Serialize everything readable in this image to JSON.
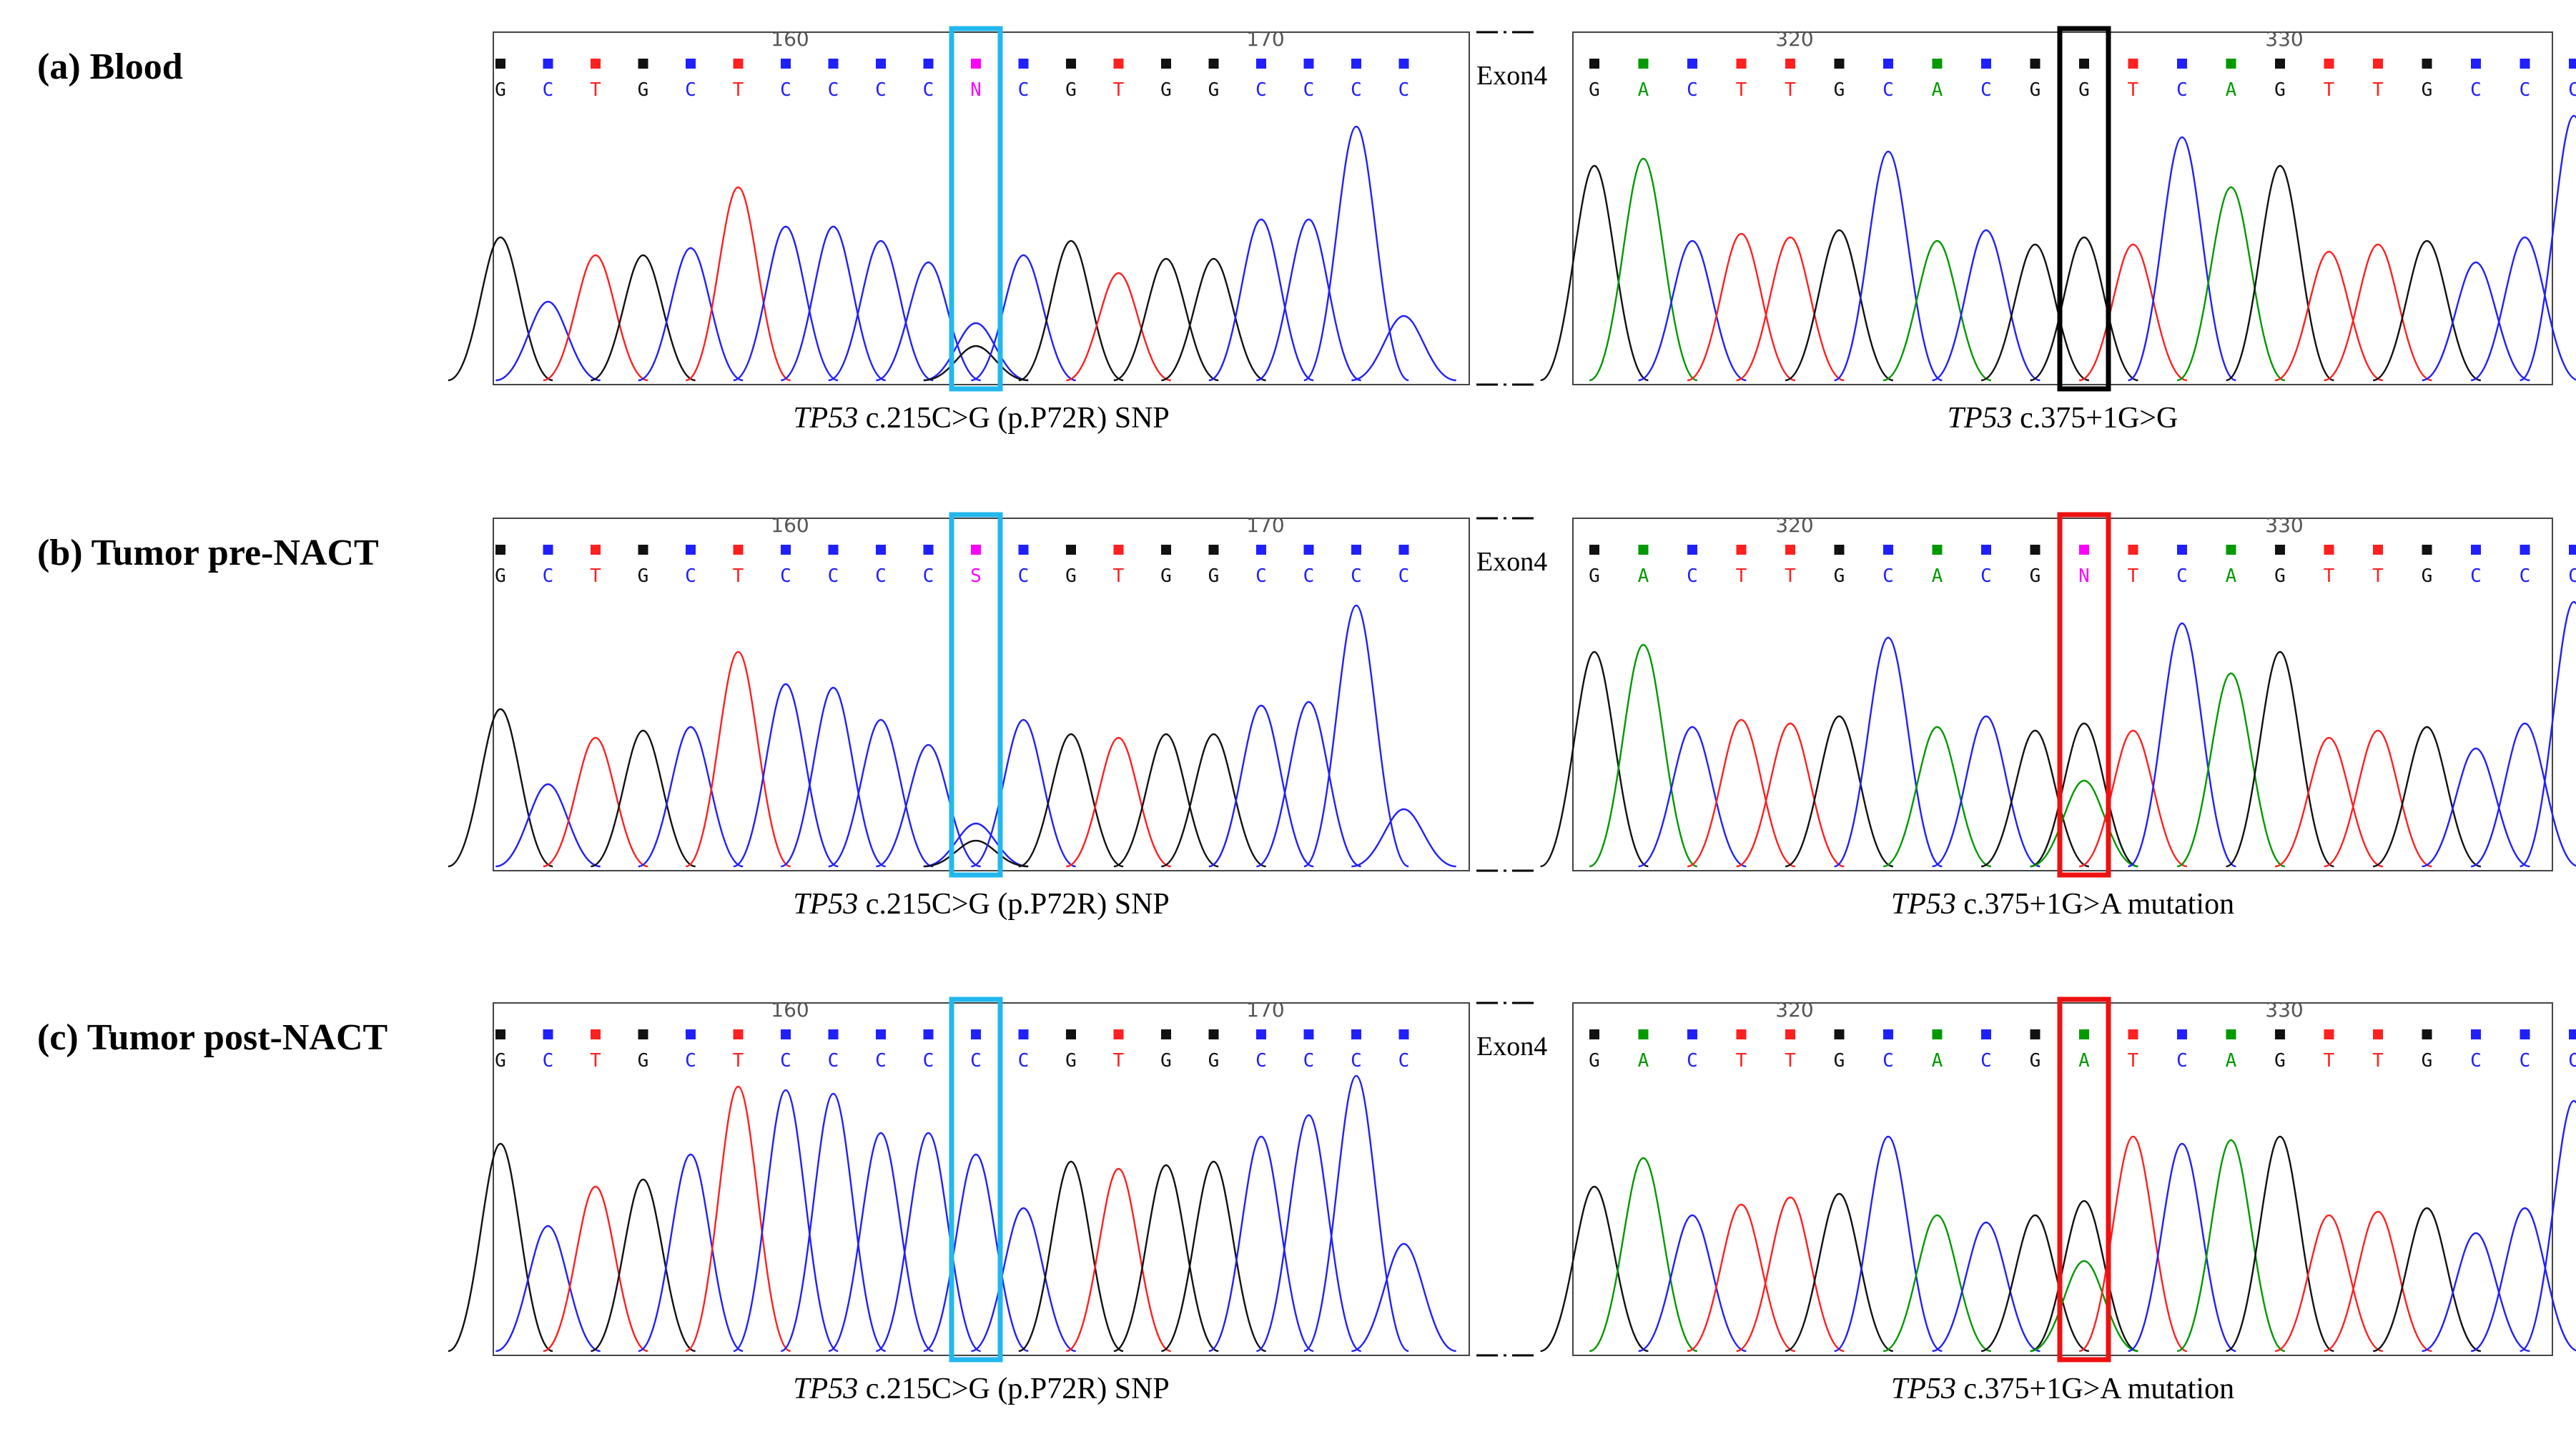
{
  "rows": [
    {
      "label": "(a) Blood",
      "left": {
        "ticks": [
          "160",
          "170"
        ],
        "bases": [
          "G",
          "C",
          "T",
          "G",
          "C",
          "T",
          "C",
          "C",
          "C",
          "C",
          "N",
          "C",
          "G",
          "T",
          "G",
          "G",
          "C",
          "C",
          "C",
          "C"
        ],
        "caption_gene": "TP53",
        "caption_rest": " c.215C>G (p.P72R) SNP"
      },
      "right": {
        "exon_label": "Exon4",
        "ticks": [
          "320",
          "330"
        ],
        "bases": [
          "G",
          "A",
          "C",
          "T",
          "T",
          "G",
          "C",
          "A",
          "C",
          "G",
          "G",
          "T",
          "C",
          "A",
          "G",
          "T",
          "T",
          "G",
          "C",
          "C",
          "C"
        ],
        "caption_gene": "TP53",
        "caption_rest": " c.375+1G>G"
      }
    },
    {
      "label": "(b) Tumor pre-NACT",
      "left": {
        "ticks": [
          "160",
          "170"
        ],
        "bases": [
          "G",
          "C",
          "T",
          "G",
          "C",
          "T",
          "C",
          "C",
          "C",
          "C",
          "S",
          "C",
          "G",
          "T",
          "G",
          "G",
          "C",
          "C",
          "C",
          "C"
        ],
        "caption_gene": "TP53",
        "caption_rest": " c.215C>G (p.P72R) SNP"
      },
      "right": {
        "exon_label": "Exon4",
        "ticks": [
          "320",
          "330"
        ],
        "bases": [
          "G",
          "A",
          "C",
          "T",
          "T",
          "G",
          "C",
          "A",
          "C",
          "G",
          "N",
          "T",
          "C",
          "A",
          "G",
          "T",
          "T",
          "G",
          "C",
          "C",
          "C"
        ],
        "caption_gene": "TP53",
        "caption_rest": " c.375+1G>A mutation"
      }
    },
    {
      "label": "(c) Tumor post-NACT",
      "left": {
        "ticks": [
          "160",
          "170"
        ],
        "bases": [
          "G",
          "C",
          "T",
          "G",
          "C",
          "T",
          "C",
          "C",
          "C",
          "C",
          "C",
          "C",
          "G",
          "T",
          "G",
          "G",
          "C",
          "C",
          "C",
          "C"
        ],
        "caption_gene": "TP53",
        "caption_rest": " c.215C>G (p.P72R) SNP"
      },
      "right": {
        "exon_label": "Exon4",
        "ticks": [
          "320",
          "330"
        ],
        "bases": [
          "G",
          "A",
          "C",
          "T",
          "T",
          "G",
          "C",
          "A",
          "C",
          "G",
          "A",
          "T",
          "C",
          "A",
          "G",
          "T",
          "T",
          "G",
          "C",
          "C",
          "C"
        ],
        "caption_gene": "TP53",
        "caption_rest": " c.375+1G>A mutation"
      }
    }
  ],
  "colors": {
    "A": "#009900",
    "C": "#2020ff",
    "G": "#111111",
    "T": "#ff2020",
    "ambiguous": "#ff00ff",
    "snp_box": "#22b8ee",
    "normal_box": "#000000",
    "mutation_box": "#ee1111"
  }
}
